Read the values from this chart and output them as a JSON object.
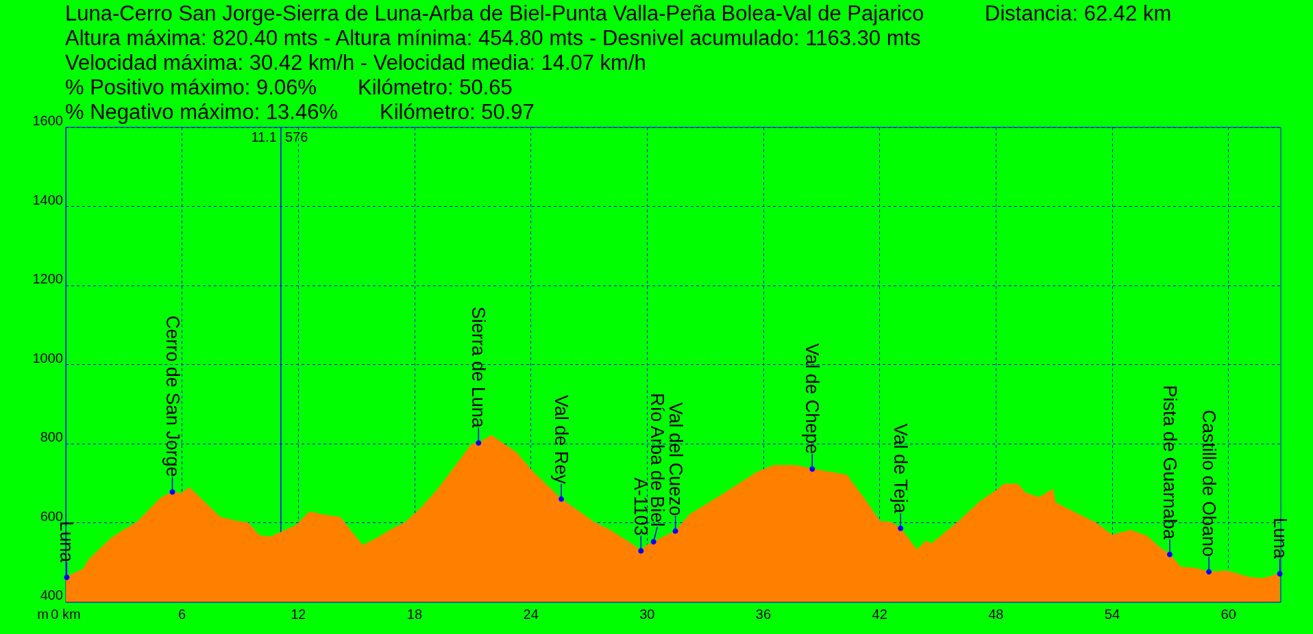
{
  "chart_data": {
    "type": "area",
    "title": "Luna-Cerro San Jorge-Sierra de Luna-Arba de Biel-Punta Valla-Peña Bolea-Val de Pajarico",
    "ylabel": "m",
    "x": [
      0,
      0.9,
      1.2,
      2.34,
      2.9,
      3.64,
      4.93,
      5.5,
      5.95,
      6.38,
      7.97,
      8.83,
      9.4,
      9.99,
      10.56,
      11.1,
      11.86,
      12.58,
      13.16,
      14.17,
      14.6,
      15.32,
      16.05,
      16.9,
      17.5,
      18.35,
      19.2,
      20.4,
      20.95,
      21.3,
      21.96,
      23.26,
      24.12,
      25.57,
      27.3,
      28.16,
      29.32,
      29.68,
      29.96,
      30.33,
      31.46,
      32.2,
      33.64,
      35.67,
      36.54,
      37.7,
      38.52,
      39.43,
      40.29,
      41.16,
      42.01,
      42.59,
      43.08,
      43.91,
      44.39,
      44.68,
      46.06,
      47.18,
      48.0,
      48.43,
      49.12,
      49.54,
      50.23,
      50.93,
      51.07,
      52.03,
      53.15,
      53.98,
      54.96,
      55.8,
      56.49,
      56.97,
      57.53,
      58.29,
      58.99,
      59.96,
      61.07,
      61.76,
      62.65
    ],
    "series": [
      {
        "color": "#ff8000",
        "values": [
          462,
          483,
          508,
          561,
          579,
          600,
          664,
          678,
          674,
          689,
          614,
          604,
          600,
          568,
          564,
          576,
          593,
          628,
          621,
          614,
          586,
          543,
          561,
          586,
          600,
          639,
          685,
          763,
          799,
          802,
          821,
          777,
          728,
          660,
          600,
          579,
          543,
          529,
          543,
          552,
          579,
          621,
          664,
          728,
          745,
          745,
          736,
          728,
          721,
          664,
          604,
          601,
          586,
          532,
          554,
          547,
          603,
          654,
          681,
          698,
          698,
          675,
          664,
          685,
          651,
          627,
          600,
          569,
          581,
          566,
          536,
          520,
          488,
          485,
          476,
          478,
          462,
          459,
          471
        ]
      }
    ],
    "xlim": [
      0,
      62.7
    ],
    "xticks": [
      {
        "value": 0,
        "label": "0 km"
      },
      6,
      12,
      18,
      24,
      30,
      36,
      42,
      48,
      54,
      60
    ],
    "ylim": [
      400,
      1600
    ],
    "yticks": [
      400,
      600,
      800,
      1000,
      1200,
      1400,
      1600
    ],
    "grid": true,
    "ref_lines": [
      {
        "axis": "x",
        "value": 11.1,
        "label": "11.1",
        "color": "#0000ff"
      }
    ],
    "annotations": [
      "Distancia: 62.42 km",
      "Altura máxima: 820.40 mts - Altura mínima: 454.80 mts - Desnivel acumulado: 1163.30 mts",
      "Velocidad máxima: 30.42 km/h - Velocidad media: 14.07 km/h",
      "% Positivo máximo: 9.06%",
      "Kilómetro: 50.65",
      "% Negativo máximo: 13.46%",
      "Kilómetro: 50.97",
      "576",
      {
        "text": "Luna",
        "x": 0.05,
        "y": 462
      },
      {
        "text": "Cerro de San Jorge",
        "x": 5.5,
        "y": 678
      },
      {
        "text": "Sierra de Luna",
        "x": 21.3,
        "y": 802
      },
      {
        "text": "Val de Rey",
        "x": 25.57,
        "y": 660
      },
      {
        "text": "A-1103",
        "x": 29.68,
        "y": 529
      },
      {
        "text": "Río Arba de Biel",
        "x": 30.33,
        "y": 552
      },
      {
        "text": "Val del Cuezo",
        "x": 31.46,
        "y": 579
      },
      {
        "text": "Val de Chepe",
        "x": 38.52,
        "y": 736
      },
      {
        "text": "Val de Teja",
        "x": 43.08,
        "y": 586
      },
      {
        "text": "Pista de Guarnaba",
        "x": 56.97,
        "y": 520
      },
      {
        "text": "Castillo de Obano",
        "x": 58.99,
        "y": 476
      },
      {
        "text": "Luna",
        "x": 62.65,
        "y": 471
      }
    ]
  }
}
